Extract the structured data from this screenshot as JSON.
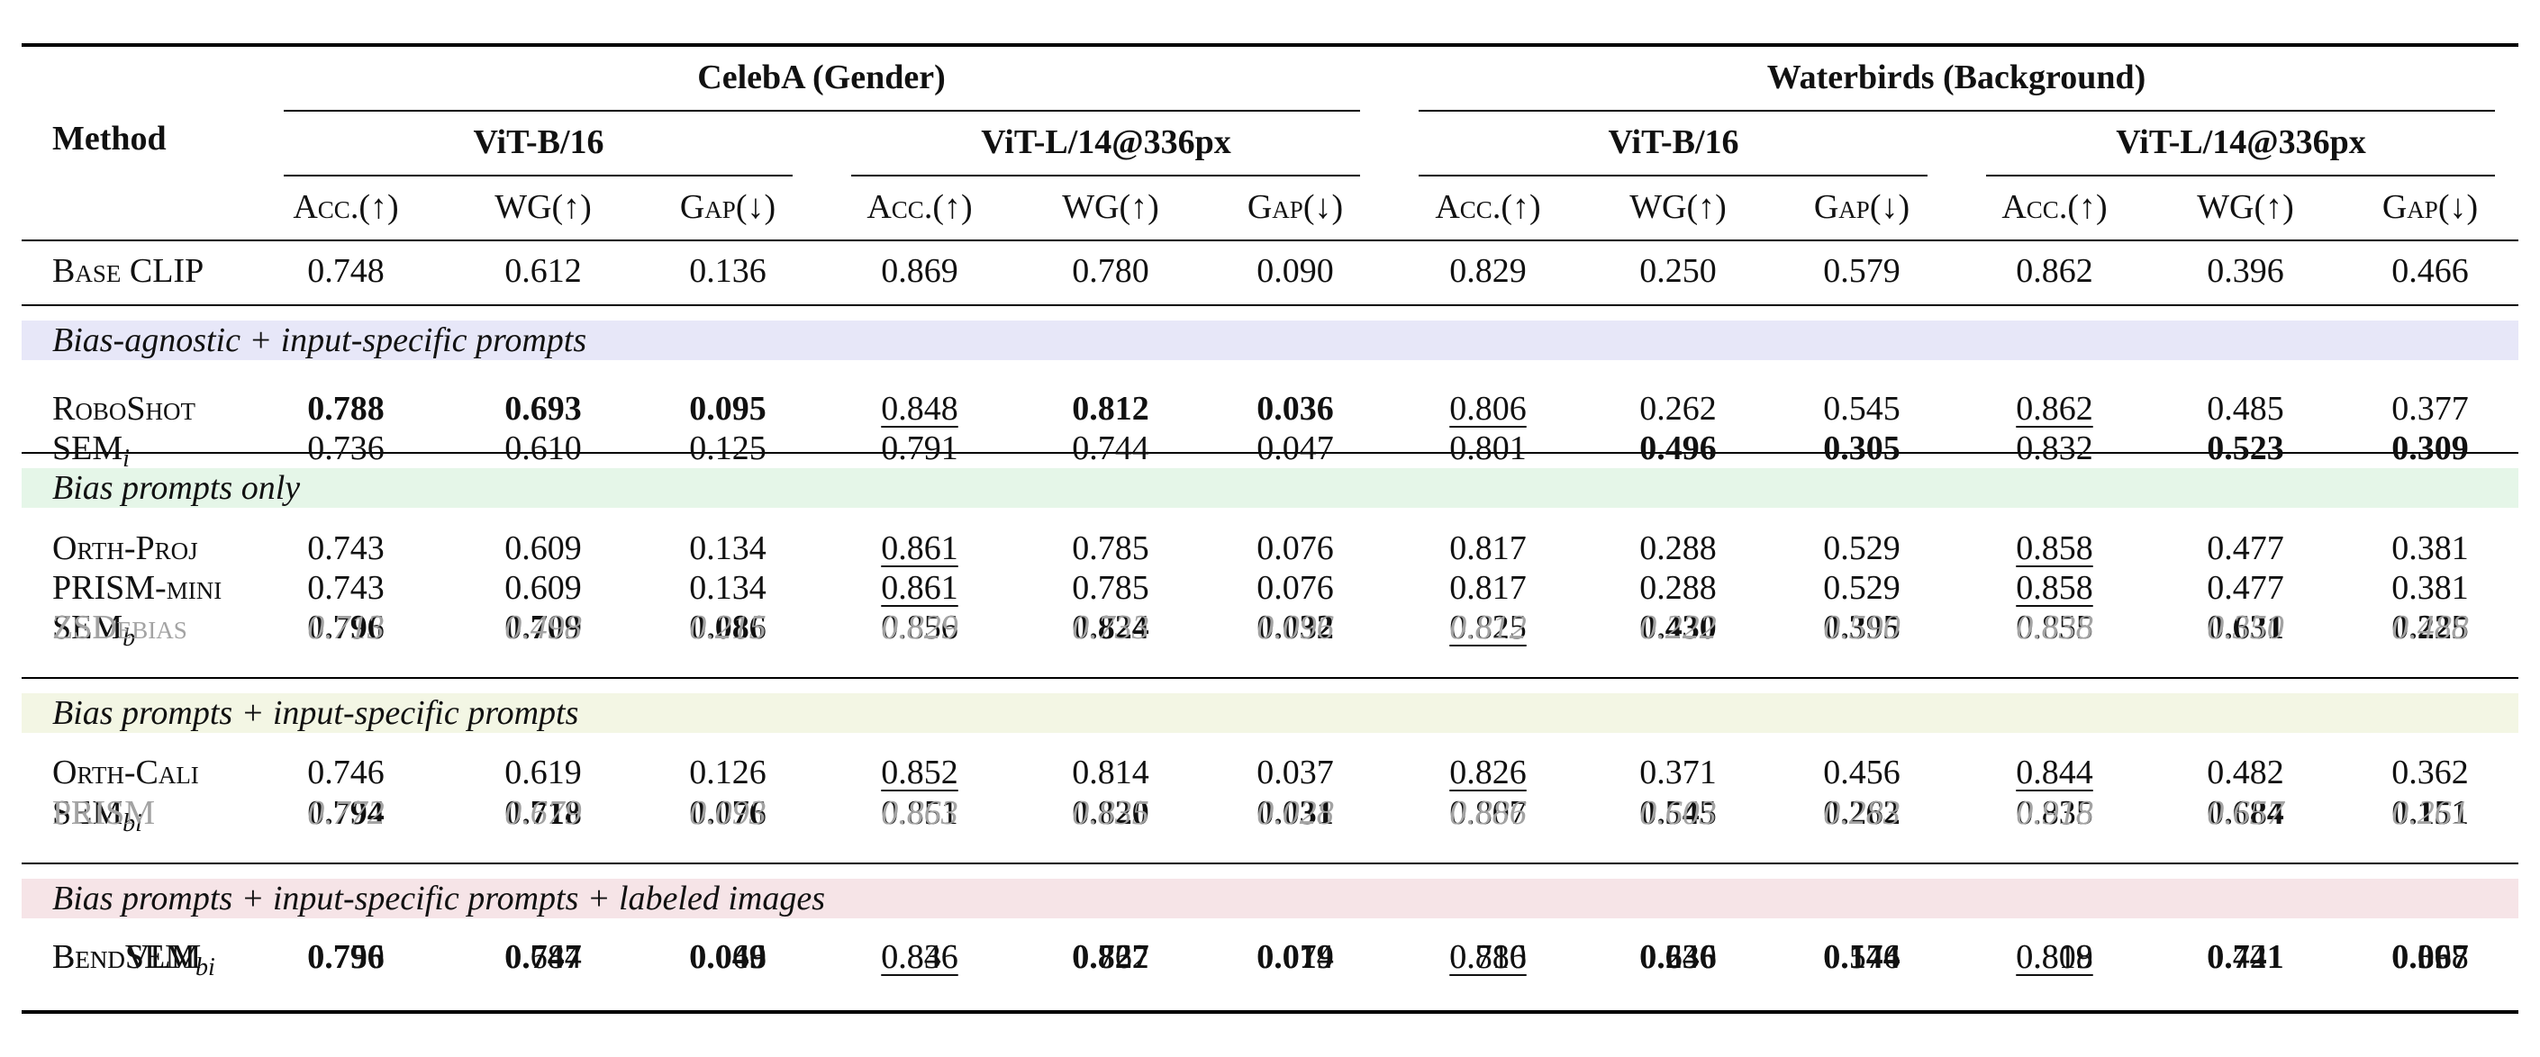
{
  "header": {
    "method": "Method",
    "datasets": [
      "CelebA (Gender)",
      "Waterbirds (Background)"
    ],
    "backbones": [
      "ViT-B/16",
      "ViT-L/14@336px",
      "ViT-B/16",
      "ViT-L/14@336px"
    ],
    "metrics": [
      "Acc.(↑)",
      "WG(↑)",
      "Gap(↓)",
      "Acc.(↑)",
      "WG(↑)",
      "Gap(↓)",
      "Acc.(↑)",
      "WG(↑)",
      "Gap(↓)",
      "Acc.(↑)",
      "WG(↑)",
      "Gap(↓)"
    ]
  },
  "base": {
    "name": "Base CLIP",
    "values": [
      "0.748",
      "0.612",
      "0.136",
      "0.869",
      "0.780",
      "0.090",
      "0.829",
      "0.250",
      "0.579",
      "0.862",
      "0.396",
      "0.466"
    ],
    "bold": [],
    "underline": []
  },
  "groups": [
    {
      "label": "Bias-agnostic + input-specific prompts",
      "color": "#e7e7f8",
      "rows": [
        {
          "name": "RoboShot",
          "sub": "",
          "dim": false,
          "values": [
            "0.788",
            "0.693",
            "0.095",
            "0.848",
            "0.812",
            "0.036",
            "0.806",
            "0.262",
            "0.545",
            "0.862",
            "0.485",
            "0.377"
          ],
          "bold": [
            0,
            1,
            2,
            4,
            5
          ],
          "underline": [
            3,
            6,
            9
          ]
        },
        {
          "name": "SEM",
          "sub": "i",
          "dim": false,
          "values": [
            "0.736",
            "0.610",
            "0.125",
            "0.791",
            "0.744",
            "0.047",
            "0.801",
            "0.496",
            "0.305",
            "0.832",
            "0.523",
            "0.309"
          ],
          "bold": [
            7,
            8,
            10,
            11
          ],
          "underline": []
        }
      ]
    },
    {
      "label": "Bias prompts only",
      "color": "#e5f6e8",
      "rows": [
        {
          "name": "Orth-Proj",
          "sub": "",
          "dim": false,
          "values": [
            "0.743",
            "0.609",
            "0.134",
            "0.861",
            "0.785",
            "0.076",
            "0.817",
            "0.288",
            "0.529",
            "0.858",
            "0.477",
            "0.381"
          ],
          "bold": [],
          "underline": [
            3,
            9
          ]
        },
        {
          "name": "PRISM-mini",
          "sub": "",
          "dim": false,
          "values": [
            "0.743",
            "0.609",
            "0.134",
            "0.861",
            "0.785",
            "0.076",
            "0.817",
            "0.288",
            "0.529",
            "0.858",
            "0.477",
            "0.381"
          ],
          "bold": [],
          "underline": [
            3,
            9
          ]
        },
        {
          "name": "SEM",
          "sub": "b",
          "dim": false,
          "values": [
            "0.796",
            "0.709",
            "0.086",
            "0.856",
            "0.824",
            "0.032",
            "0.825",
            "0.430",
            "0.395",
            "0.855",
            "0.631",
            "0.225"
          ],
          "bold": [
            0,
            1,
            2,
            4,
            5,
            7,
            8,
            10,
            11
          ],
          "underline": [
            6
          ]
        },
        {
          "name": "ZSDebias",
          "sub": "",
          "dim": true,
          "values": [
            "0.713",
            "0.498",
            "0.215",
            "0.829",
            "0.733",
            "0.096",
            "0.812",
            "0.222",
            "0.590",
            "0.838",
            "0.350",
            "0.488"
          ],
          "bold": [],
          "underline": []
        }
      ]
    },
    {
      "label": "Bias prompts + input-specific prompts",
      "color": "#f3f6e4",
      "rows": [
        {
          "name": "Orth-Cali",
          "sub": "",
          "dim": false,
          "values": [
            "0.746",
            "0.619",
            "0.126",
            "0.852",
            "0.814",
            "0.037",
            "0.826",
            "0.371",
            "0.456",
            "0.844",
            "0.482",
            "0.362"
          ],
          "bold": [],
          "underline": [
            3,
            6,
            9
          ]
        },
        {
          "name": "SEM",
          "sub": "bi",
          "dim": false,
          "values": [
            "0.794",
            "0.718",
            "0.076",
            "0.851",
            "0.820",
            "0.031",
            "0.807",
            "0.545",
            "0.262",
            "0.835",
            "0.684",
            "0.151"
          ],
          "bold": [
            0,
            1,
            2,
            4,
            5,
            7,
            8,
            10,
            11
          ],
          "underline": []
        },
        {
          "name": "PRISM",
          "sub": "",
          "dim": true,
          "values": [
            "0.772",
            "0.679",
            "0.093",
            "0.863",
            "0.835",
            "0.028",
            "0.886",
            "0.603",
            "0.283",
            "0.918",
            "0.657",
            "0.261"
          ],
          "bold": [],
          "underline": []
        }
      ]
    },
    {
      "label": "Bias prompts + input-specific prompts + labeled images",
      "color": "#f6e4e7",
      "rows": [
        {
          "name": "BendVLM",
          "sub": "",
          "dim": false,
          "values": [
            "0.750",
            "0.684",
            "0.066",
            "0.836",
            "0.762",
            "0.074",
            "0.816",
            "0.240",
            "0.576",
            "0.819",
            "0.421",
            "0.398"
          ],
          "bold": [],
          "underline": [
            6,
            9
          ]
        },
        {
          "name": "BendSEM",
          "sub": "bi",
          "dim": false,
          "values": [
            "0.796",
            "0.747",
            "0.049",
            "0.846",
            "0.827",
            "0.019",
            "0.780",
            "0.636",
            "0.144",
            "0.808",
            "0.741",
            "0.067"
          ],
          "bold": [
            0,
            1,
            2,
            4,
            5,
            7,
            8,
            10,
            11
          ],
          "underline": [
            3
          ]
        }
      ]
    }
  ]
}
